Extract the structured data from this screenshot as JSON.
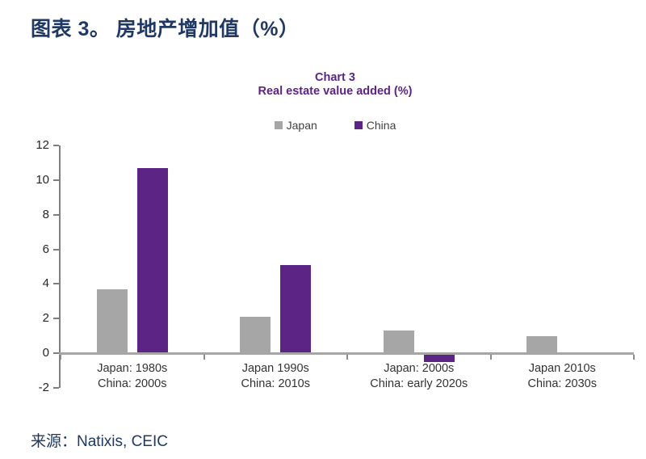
{
  "header": {
    "title": "图表 3。 房地产增加值（%）"
  },
  "chart_data": {
    "type": "bar",
    "title": "Chart 3",
    "subtitle": "Real estate value added (%)",
    "categories": [
      {
        "line1": "Japan: 1980s",
        "line2": "China: 2000s"
      },
      {
        "line1": "Japan 1990s",
        "line2": "China: 2010s"
      },
      {
        "line1": "Japan: 2000s",
        "line2": "China: early 2020s"
      },
      {
        "line1": "Japan 2010s",
        "line2": "China: 2030s"
      }
    ],
    "series": [
      {
        "name": "Japan",
        "color": "#a6a6a6",
        "values": [
          3.7,
          2.1,
          1.3,
          1.0
        ]
      },
      {
        "name": "China",
        "color": "#5c2484",
        "values": [
          10.7,
          5.1,
          -0.5,
          null
        ]
      }
    ],
    "ylim": [
      -2,
      12
    ],
    "yticks": [
      12,
      10,
      8,
      6,
      4,
      2,
      0,
      -2
    ],
    "grid": false,
    "legend_position": "top",
    "title_color": "#5c2484"
  },
  "footer": {
    "source": "来源：Natixis, CEIC"
  },
  "colors": {
    "heading": "#1f3864",
    "y_axis_line": "#7f7f7f",
    "zero_line": "#a6a6a6",
    "x_tick": "#8c8c8c"
  }
}
